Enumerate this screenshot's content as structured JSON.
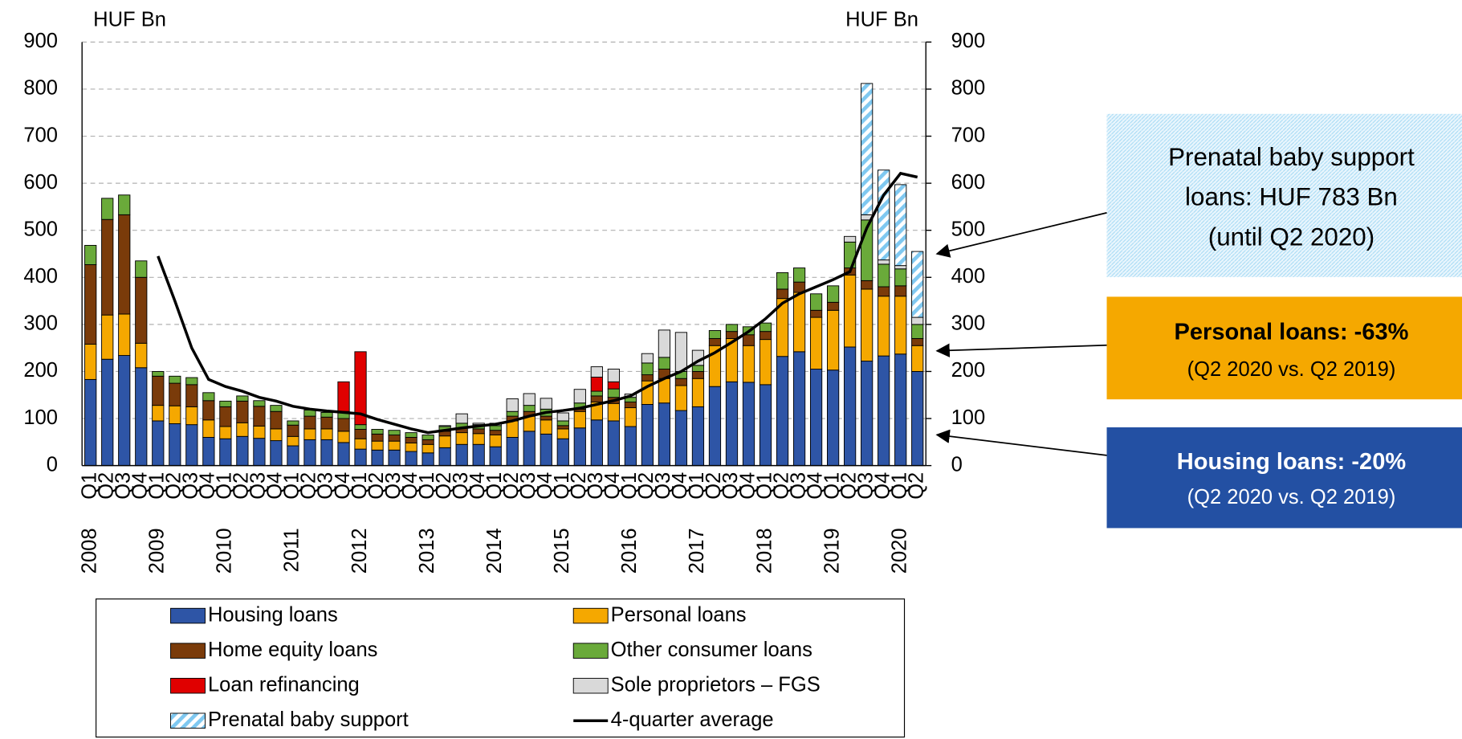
{
  "chart_data": {
    "type": "bar",
    "stacked": true,
    "y_label": "HUF Bn",
    "y2_label": "HUF Bn",
    "categories": [
      "Q1",
      "Q2",
      "Q3",
      "Q4",
      "Q1",
      "Q2",
      "Q3",
      "Q4",
      "Q1",
      "Q2",
      "Q3",
      "Q4",
      "Q1",
      "Q2",
      "Q3",
      "Q4",
      "Q1",
      "Q2",
      "Q3",
      "Q4",
      "Q1",
      "Q2",
      "Q3",
      "Q4",
      "Q1",
      "Q2",
      "Q3",
      "Q4",
      "Q1",
      "Q2",
      "Q3",
      "Q4",
      "Q1",
      "Q2",
      "Q3",
      "Q4",
      "Q1",
      "Q2",
      "Q3",
      "Q4",
      "Q1",
      "Q2",
      "Q3",
      "Q4",
      "Q1",
      "Q2",
      "Q3",
      "Q4",
      "Q1",
      "Q2"
    ],
    "years": [
      "2008",
      "2009",
      "2010",
      "2011",
      "2012",
      "2013",
      "2014",
      "2015",
      "2016",
      "2017",
      "2018",
      "2019",
      "2020"
    ],
    "ylim": [
      0,
      900
    ],
    "yticks": [
      0,
      100,
      200,
      300,
      400,
      500,
      600,
      700,
      800,
      900
    ],
    "y2lim": [
      0,
      900
    ],
    "y2ticks": [
      0,
      100,
      200,
      300,
      400,
      500,
      600,
      700,
      800,
      900
    ],
    "grid": true,
    "series": [
      {
        "name": "Housing loans",
        "color": "#2e55a6",
        "values": [
          183,
          226,
          234,
          208,
          95,
          89,
          87,
          60,
          57,
          62,
          58,
          53,
          42,
          55,
          55,
          49,
          35,
          33,
          33,
          30,
          27,
          38,
          45,
          45,
          40,
          60,
          73,
          67,
          57,
          80,
          97,
          95,
          83,
          130,
          133,
          117,
          125,
          168,
          178,
          177,
          172,
          232,
          242,
          205,
          203,
          252,
          222,
          233,
          237,
          200
        ]
      },
      {
        "name": "Personal loans",
        "color": "#f5a800",
        "values": [
          75,
          94,
          88,
          52,
          33,
          38,
          38,
          37,
          26,
          29,
          26,
          25,
          20,
          23,
          23,
          24,
          22,
          19,
          19,
          18,
          18,
          25,
          25,
          23,
          25,
          35,
          32,
          30,
          21,
          35,
          38,
          37,
          40,
          50,
          52,
          53,
          60,
          87,
          92,
          78,
          96,
          123,
          126,
          110,
          127,
          153,
          153,
          127,
          123,
          55
        ]
      },
      {
        "name": "Home equity loans",
        "color": "#7a3b0a",
        "values": [
          169,
          203,
          211,
          140,
          62,
          48,
          47,
          41,
          42,
          46,
          42,
          37,
          24,
          27,
          25,
          27,
          20,
          15,
          13,
          12,
          10,
          10,
          10,
          10,
          10,
          10,
          10,
          8,
          7,
          5,
          13,
          13,
          12,
          13,
          20,
          15,
          15,
          15,
          15,
          23,
          17,
          20,
          22,
          15,
          17,
          15,
          18,
          20,
          22,
          15
        ]
      },
      {
        "name": "Other consumer loans",
        "color": "#6aaa3a",
        "values": [
          41,
          45,
          42,
          35,
          10,
          15,
          15,
          17,
          12,
          11,
          12,
          13,
          9,
          13,
          10,
          15,
          10,
          10,
          10,
          10,
          10,
          10,
          10,
          9,
          10,
          10,
          13,
          15,
          10,
          13,
          10,
          18,
          10,
          25,
          25,
          15,
          13,
          17,
          15,
          17,
          18,
          35,
          30,
          35,
          35,
          55,
          129,
          48,
          36,
          30
        ]
      },
      {
        "name": "Loan refinancing",
        "color": "#e00000",
        "values": [
          0,
          0,
          0,
          0,
          0,
          0,
          0,
          0,
          0,
          0,
          0,
          0,
          0,
          0,
          0,
          63,
          155,
          0,
          0,
          0,
          0,
          0,
          0,
          0,
          0,
          0,
          0,
          0,
          0,
          0,
          30,
          15,
          0,
          0,
          0,
          0,
          0,
          0,
          0,
          0,
          0,
          0,
          0,
          0,
          0,
          0,
          0,
          0,
          0,
          0
        ]
      },
      {
        "name": "Sole proprietors – FGS",
        "color": "#d9d9d9",
        "values": [
          0,
          0,
          0,
          0,
          0,
          0,
          0,
          0,
          0,
          0,
          0,
          0,
          0,
          0,
          0,
          0,
          0,
          0,
          0,
          0,
          0,
          2,
          20,
          3,
          5,
          27,
          25,
          23,
          17,
          29,
          22,
          27,
          7,
          20,
          58,
          83,
          32,
          0,
          0,
          0,
          0,
          0,
          0,
          0,
          0,
          12,
          11,
          9,
          7,
          15
        ]
      },
      {
        "name": "Prenatal baby support",
        "color": "#7fc8f0",
        "hatch": true,
        "values": [
          0,
          0,
          0,
          0,
          0,
          0,
          0,
          0,
          0,
          0,
          0,
          0,
          0,
          0,
          0,
          0,
          0,
          0,
          0,
          0,
          0,
          0,
          0,
          0,
          0,
          0,
          0,
          0,
          0,
          0,
          0,
          0,
          0,
          0,
          0,
          0,
          0,
          0,
          0,
          0,
          0,
          0,
          0,
          0,
          0,
          0,
          279,
          191,
          172,
          140
        ]
      },
      {
        "name": "4-quarter average",
        "color": "#000000",
        "type": "line",
        "values": [
          null,
          null,
          null,
          null,
          445,
          350,
          250,
          183,
          168,
          158,
          145,
          137,
          126,
          120,
          116,
          113,
          110,
          98,
          88,
          78,
          70,
          75,
          80,
          84,
          88,
          95,
          105,
          113,
          117,
          122,
          130,
          138,
          148,
          168,
          185,
          200,
          222,
          240,
          262,
          285,
          312,
          345,
          365,
          380,
          395,
          412,
          505,
          575,
          621,
          613
        ]
      }
    ],
    "annotations": [
      {
        "lines": [
          "Prenatal baby support",
          "loans: HUF 783 Bn",
          "(until Q2 2020)"
        ]
      },
      {
        "lines": [
          "Personal loans: -63%",
          "(Q2 2020 vs. Q2 2019)"
        ]
      },
      {
        "lines": [
          "Housing loans: -20%",
          "(Q2 2020 vs. Q2 2019)"
        ]
      }
    ]
  }
}
